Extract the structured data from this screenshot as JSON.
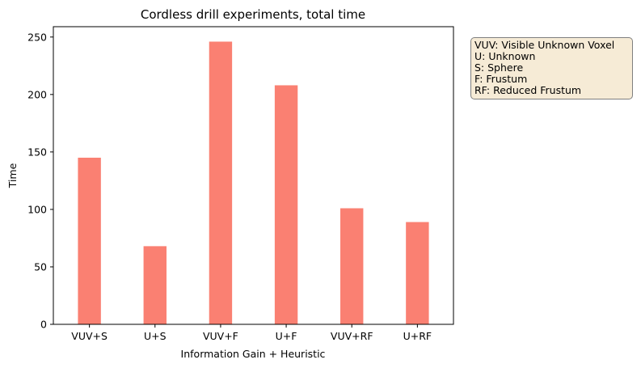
{
  "chart_data": {
    "type": "bar",
    "title": "Cordless drill experiments, total time",
    "xlabel": "Information Gain + Heuristic",
    "ylabel": "Time",
    "categories": [
      "VUV+S",
      "U+S",
      "VUV+F",
      "U+F",
      "VUV+RF",
      "U+RF"
    ],
    "values": [
      145,
      68,
      246,
      208,
      101,
      89
    ],
    "ylim": [
      0,
      259
    ],
    "yticks": [
      0,
      50,
      100,
      150,
      200,
      250
    ],
    "bar_color": "#fa8072",
    "grid": false,
    "annotation": [
      "VUV: Visible Unknown Voxel",
      "U: Unknown",
      "S: Sphere",
      "F: Frustum",
      "RF: Reduced Frustum"
    ],
    "annotation_position": "right"
  }
}
